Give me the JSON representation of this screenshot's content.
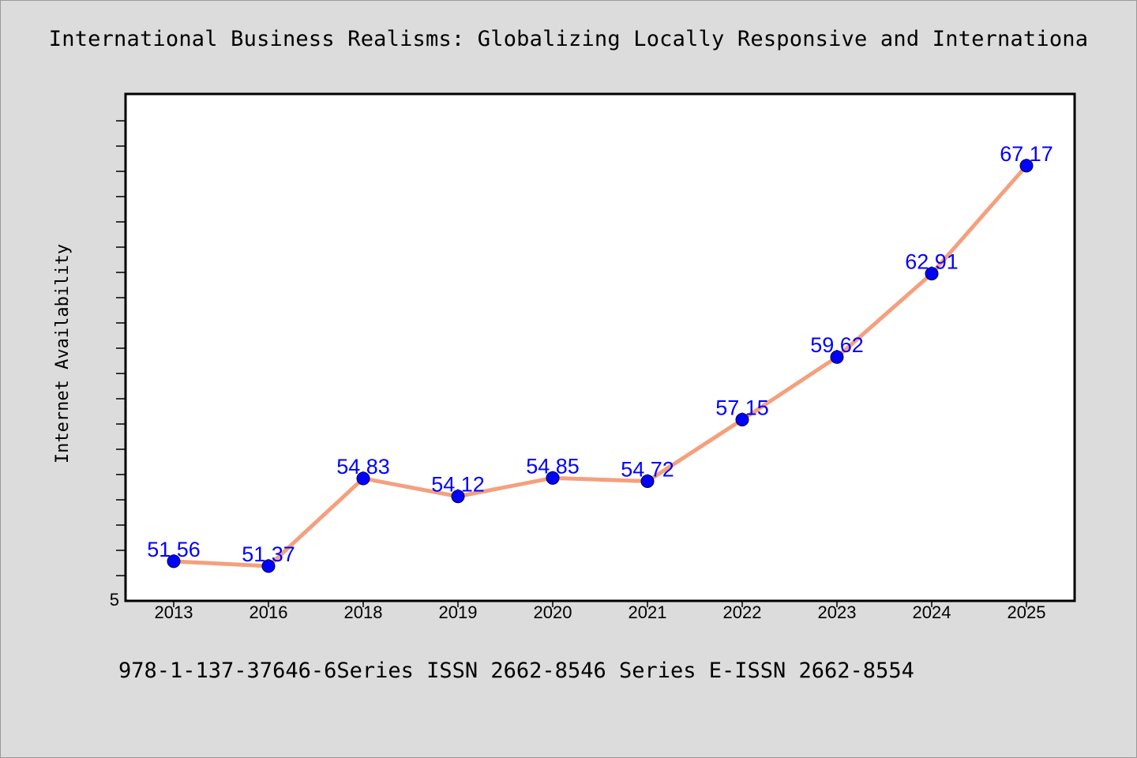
{
  "title": "International Business Realisms: Globalizing Locally Responsive and Internationa",
  "footer": "978-1-137-37646-6Series ISSN 2662-8546 Series E-ISSN 2662-8554",
  "chart_data": {
    "type": "line",
    "title": "International Business Realisms: Globalizing Locally Responsive and Internationa",
    "xlabel": "",
    "ylabel": "Internet Availability",
    "categories": [
      "2013",
      "2016",
      "2018",
      "2019",
      "2020",
      "2021",
      "2022",
      "2023",
      "2024",
      "2025"
    ],
    "series": [
      {
        "values": [
          51.56,
          51.37,
          54.83,
          54.12,
          54.85,
          54.72,
          57.15,
          59.62,
          62.91,
          67.17
        ],
        "labels": [
          "51.56",
          "51.37",
          "54.83",
          "54.12",
          "54.85",
          "54.72",
          "57.15",
          "59.62",
          "62.91",
          "67.17"
        ]
      }
    ],
    "ylim": [
      50,
      70
    ],
    "y_tick_labels": [
      "5"
    ],
    "grid": false,
    "legend": "none",
    "colors": {
      "line": "#f4a07e",
      "marker": "#0000ff",
      "label": "#0000ff",
      "plot_background": "#ffffff",
      "page_background": "#dcdcdc"
    }
  }
}
